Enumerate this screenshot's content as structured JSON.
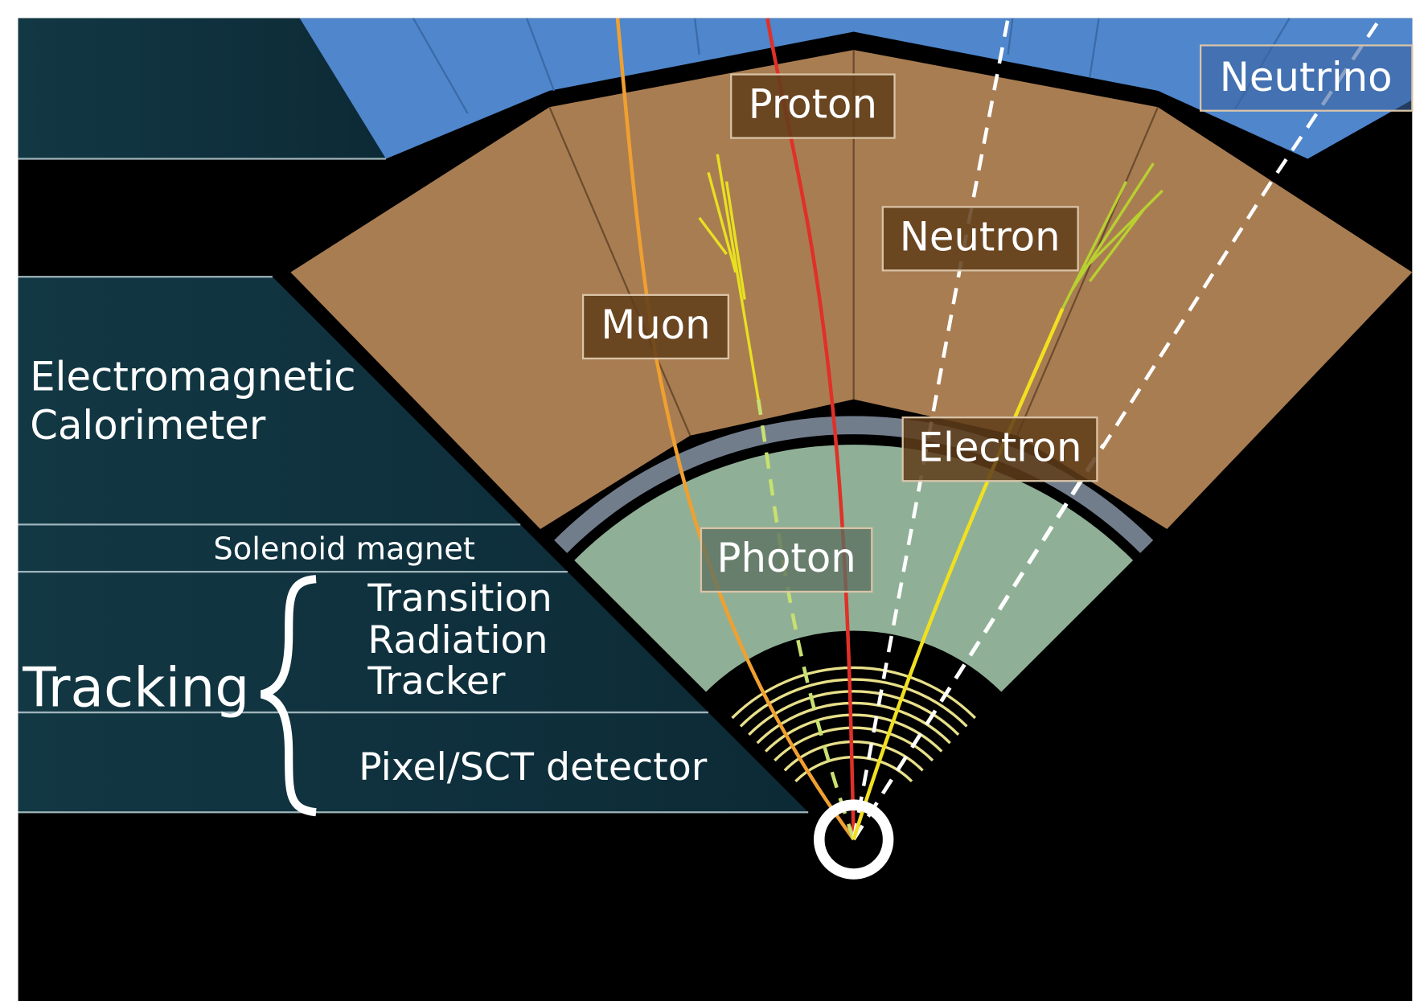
{
  "layers": [
    {
      "label": [
        "Electromagnetic",
        "Calorimeter"
      ]
    },
    {
      "label": [
        "Solenoid magnet"
      ]
    },
    {
      "label": [
        "Transition",
        "Radiation",
        "Tracker"
      ]
    },
    {
      "label": [
        "Pixel/SCT detector"
      ]
    }
  ],
  "group": {
    "label": "Tracking"
  },
  "particles": [
    {
      "label": "Proton"
    },
    {
      "label": "Neutrino"
    },
    {
      "label": "Neutron"
    },
    {
      "label": "Muon"
    },
    {
      "label": "Electron"
    },
    {
      "label": "Photon"
    }
  ]
}
